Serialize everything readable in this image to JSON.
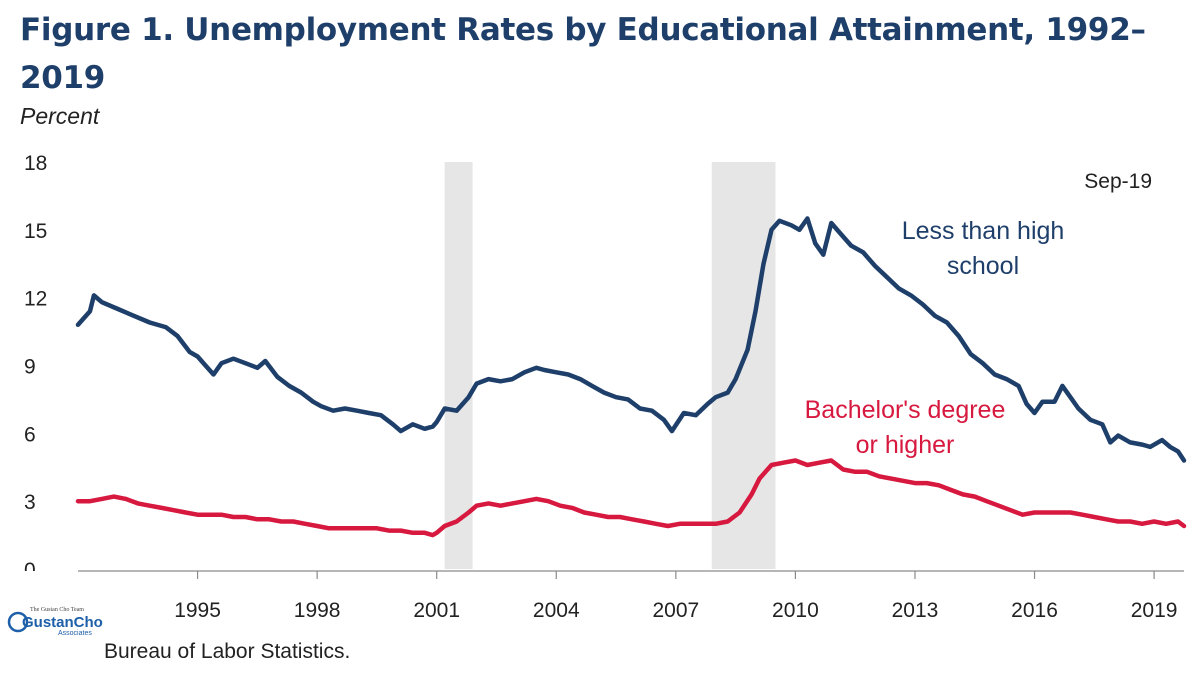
{
  "header": {
    "title": "Figure 1. Unemployment Rates by Educational Attainment, 1992–2019"
  },
  "footer": {
    "source": "Bureau of Labor Statistics."
  },
  "logo": {
    "top_text": "The Gustan Cho Team",
    "main_text": "GustanCho",
    "sub_text": "Associates"
  },
  "colors": {
    "navy": "#1f3f6b",
    "red": "#d7193f",
    "recession": "#e6e6e6"
  },
  "chart_data": {
    "type": "line",
    "title": "Figure 1. Unemployment Rates by Educational Attainment, 1992–2019",
    "ylabel": "Percent",
    "xlabel": "",
    "ylim": [
      0,
      18
    ],
    "xlim": [
      1992.0,
      2019.75
    ],
    "y_ticks": [
      0,
      3,
      6,
      9,
      12,
      15,
      18
    ],
    "x_ticks": [
      1995,
      1998,
      2001,
      2004,
      2007,
      2010,
      2013,
      2016,
      2019
    ],
    "recessions": [
      [
        2001.2,
        2001.9
      ],
      [
        2007.9,
        2009.5
      ]
    ],
    "annotations": [
      {
        "text": "Sep-19"
      }
    ],
    "series": [
      {
        "name": "Less than high school",
        "label_lines": [
          "Less than high",
          "school"
        ],
        "color": "#1f3f6b",
        "points": [
          [
            1992.0,
            10.8
          ],
          [
            1992.3,
            11.4
          ],
          [
            1992.4,
            12.1
          ],
          [
            1992.6,
            11.8
          ],
          [
            1993.0,
            11.5
          ],
          [
            1993.4,
            11.2
          ],
          [
            1993.8,
            10.9
          ],
          [
            1994.2,
            10.7
          ],
          [
            1994.5,
            10.3
          ],
          [
            1994.8,
            9.6
          ],
          [
            1995.0,
            9.4
          ],
          [
            1995.2,
            9.0
          ],
          [
            1995.4,
            8.6
          ],
          [
            1995.6,
            9.1
          ],
          [
            1995.9,
            9.3
          ],
          [
            1996.2,
            9.1
          ],
          [
            1996.5,
            8.9
          ],
          [
            1996.7,
            9.2
          ],
          [
            1997.0,
            8.5
          ],
          [
            1997.3,
            8.1
          ],
          [
            1997.6,
            7.8
          ],
          [
            1997.9,
            7.4
          ],
          [
            1998.1,
            7.2
          ],
          [
            1998.4,
            7.0
          ],
          [
            1998.7,
            7.1
          ],
          [
            1999.0,
            7.0
          ],
          [
            1999.3,
            6.9
          ],
          [
            1999.6,
            6.8
          ],
          [
            1999.9,
            6.4
          ],
          [
            2000.1,
            6.1
          ],
          [
            2000.4,
            6.4
          ],
          [
            2000.7,
            6.2
          ],
          [
            2000.9,
            6.3
          ],
          [
            2001.0,
            6.5
          ],
          [
            2001.2,
            7.1
          ],
          [
            2001.5,
            7.0
          ],
          [
            2001.8,
            7.6
          ],
          [
            2002.0,
            8.2
          ],
          [
            2002.3,
            8.4
          ],
          [
            2002.6,
            8.3
          ],
          [
            2002.9,
            8.4
          ],
          [
            2003.2,
            8.7
          ],
          [
            2003.5,
            8.9
          ],
          [
            2003.7,
            8.8
          ],
          [
            2004.0,
            8.7
          ],
          [
            2004.3,
            8.6
          ],
          [
            2004.6,
            8.4
          ],
          [
            2004.9,
            8.1
          ],
          [
            2005.2,
            7.8
          ],
          [
            2005.5,
            7.6
          ],
          [
            2005.8,
            7.5
          ],
          [
            2006.1,
            7.1
          ],
          [
            2006.4,
            7.0
          ],
          [
            2006.7,
            6.6
          ],
          [
            2006.9,
            6.1
          ],
          [
            2007.2,
            6.9
          ],
          [
            2007.5,
            6.8
          ],
          [
            2007.8,
            7.3
          ],
          [
            2008.0,
            7.6
          ],
          [
            2008.3,
            7.8
          ],
          [
            2008.5,
            8.4
          ],
          [
            2008.8,
            9.7
          ],
          [
            2009.0,
            11.4
          ],
          [
            2009.2,
            13.5
          ],
          [
            2009.4,
            15.0
          ],
          [
            2009.6,
            15.4
          ],
          [
            2009.9,
            15.2
          ],
          [
            2010.1,
            15.0
          ],
          [
            2010.3,
            15.5
          ],
          [
            2010.5,
            14.4
          ],
          [
            2010.7,
            13.9
          ],
          [
            2010.9,
            15.3
          ],
          [
            2011.1,
            14.9
          ],
          [
            2011.4,
            14.3
          ],
          [
            2011.7,
            14.0
          ],
          [
            2012.0,
            13.4
          ],
          [
            2012.3,
            12.9
          ],
          [
            2012.6,
            12.4
          ],
          [
            2012.9,
            12.1
          ],
          [
            2013.2,
            11.7
          ],
          [
            2013.5,
            11.2
          ],
          [
            2013.8,
            10.9
          ],
          [
            2014.1,
            10.3
          ],
          [
            2014.4,
            9.5
          ],
          [
            2014.7,
            9.1
          ],
          [
            2015.0,
            8.6
          ],
          [
            2015.3,
            8.4
          ],
          [
            2015.6,
            8.1
          ],
          [
            2015.8,
            7.3
          ],
          [
            2016.0,
            6.9
          ],
          [
            2016.2,
            7.4
          ],
          [
            2016.5,
            7.4
          ],
          [
            2016.7,
            8.1
          ],
          [
            2016.9,
            7.6
          ],
          [
            2017.1,
            7.1
          ],
          [
            2017.4,
            6.6
          ],
          [
            2017.7,
            6.4
          ],
          [
            2017.9,
            5.6
          ],
          [
            2018.1,
            5.9
          ],
          [
            2018.4,
            5.6
          ],
          [
            2018.7,
            5.5
          ],
          [
            2018.9,
            5.4
          ],
          [
            2019.2,
            5.7
          ],
          [
            2019.4,
            5.4
          ],
          [
            2019.6,
            5.2
          ],
          [
            2019.75,
            4.8
          ]
        ]
      },
      {
        "name": "Bachelor's degree or higher",
        "label_lines": [
          "Bachelor's degree",
          "or higher"
        ],
        "color": "#d7193f",
        "points": [
          [
            1992.0,
            3.0
          ],
          [
            1992.3,
            3.0
          ],
          [
            1992.6,
            3.1
          ],
          [
            1992.9,
            3.2
          ],
          [
            1993.2,
            3.1
          ],
          [
            1993.5,
            2.9
          ],
          [
            1993.8,
            2.8
          ],
          [
            1994.1,
            2.7
          ],
          [
            1994.4,
            2.6
          ],
          [
            1994.7,
            2.5
          ],
          [
            1995.0,
            2.4
          ],
          [
            1995.3,
            2.4
          ],
          [
            1995.6,
            2.4
          ],
          [
            1995.9,
            2.3
          ],
          [
            1996.2,
            2.3
          ],
          [
            1996.5,
            2.2
          ],
          [
            1996.8,
            2.2
          ],
          [
            1997.1,
            2.1
          ],
          [
            1997.4,
            2.1
          ],
          [
            1997.7,
            2.0
          ],
          [
            1998.0,
            1.9
          ],
          [
            1998.3,
            1.8
          ],
          [
            1998.6,
            1.8
          ],
          [
            1998.9,
            1.8
          ],
          [
            1999.2,
            1.8
          ],
          [
            1999.5,
            1.8
          ],
          [
            1999.8,
            1.7
          ],
          [
            2000.1,
            1.7
          ],
          [
            2000.4,
            1.6
          ],
          [
            2000.7,
            1.6
          ],
          [
            2000.9,
            1.5
          ],
          [
            2001.0,
            1.6
          ],
          [
            2001.2,
            1.9
          ],
          [
            2001.5,
            2.1
          ],
          [
            2001.8,
            2.5
          ],
          [
            2002.0,
            2.8
          ],
          [
            2002.3,
            2.9
          ],
          [
            2002.6,
            2.8
          ],
          [
            2002.9,
            2.9
          ],
          [
            2003.2,
            3.0
          ],
          [
            2003.5,
            3.1
          ],
          [
            2003.8,
            3.0
          ],
          [
            2004.1,
            2.8
          ],
          [
            2004.4,
            2.7
          ],
          [
            2004.7,
            2.5
          ],
          [
            2005.0,
            2.4
          ],
          [
            2005.3,
            2.3
          ],
          [
            2005.6,
            2.3
          ],
          [
            2005.9,
            2.2
          ],
          [
            2006.2,
            2.1
          ],
          [
            2006.5,
            2.0
          ],
          [
            2006.8,
            1.9
          ],
          [
            2007.1,
            2.0
          ],
          [
            2007.4,
            2.0
          ],
          [
            2007.7,
            2.0
          ],
          [
            2008.0,
            2.0
          ],
          [
            2008.3,
            2.1
          ],
          [
            2008.6,
            2.5
          ],
          [
            2008.9,
            3.3
          ],
          [
            2009.1,
            4.0
          ],
          [
            2009.4,
            4.6
          ],
          [
            2009.7,
            4.7
          ],
          [
            2010.0,
            4.8
          ],
          [
            2010.3,
            4.6
          ],
          [
            2010.6,
            4.7
          ],
          [
            2010.9,
            4.8
          ],
          [
            2011.2,
            4.4
          ],
          [
            2011.5,
            4.3
          ],
          [
            2011.8,
            4.3
          ],
          [
            2012.1,
            4.1
          ],
          [
            2012.4,
            4.0
          ],
          [
            2012.7,
            3.9
          ],
          [
            2013.0,
            3.8
          ],
          [
            2013.3,
            3.8
          ],
          [
            2013.6,
            3.7
          ],
          [
            2013.9,
            3.5
          ],
          [
            2014.2,
            3.3
          ],
          [
            2014.5,
            3.2
          ],
          [
            2014.8,
            3.0
          ],
          [
            2015.1,
            2.8
          ],
          [
            2015.4,
            2.6
          ],
          [
            2015.7,
            2.4
          ],
          [
            2016.0,
            2.5
          ],
          [
            2016.3,
            2.5
          ],
          [
            2016.6,
            2.5
          ],
          [
            2016.9,
            2.5
          ],
          [
            2017.2,
            2.4
          ],
          [
            2017.5,
            2.3
          ],
          [
            2017.8,
            2.2
          ],
          [
            2018.1,
            2.1
          ],
          [
            2018.4,
            2.1
          ],
          [
            2018.7,
            2.0
          ],
          [
            2019.0,
            2.1
          ],
          [
            2019.3,
            2.0
          ],
          [
            2019.6,
            2.1
          ],
          [
            2019.75,
            1.9
          ]
        ]
      }
    ]
  }
}
